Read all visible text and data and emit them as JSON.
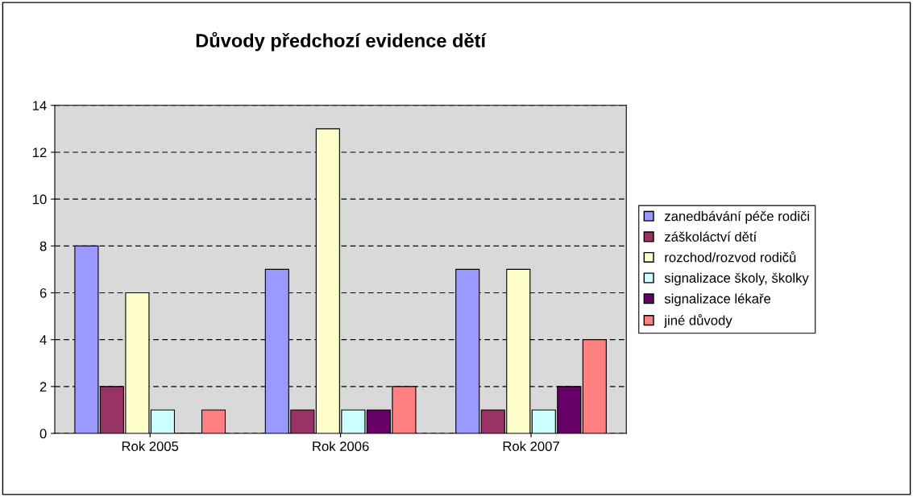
{
  "chart_data": {
    "type": "bar",
    "title": "Důvody předchozí evidence dětí",
    "categories": [
      "Rok 2005",
      "Rok 2006",
      "Rok 2007"
    ],
    "series": [
      {
        "name": "zanedbávání péče rodiči",
        "color": "#9999ff",
        "values": [
          8,
          7,
          7
        ]
      },
      {
        "name": "záškoláctví dětí",
        "color": "#993366",
        "values": [
          2,
          1,
          1
        ]
      },
      {
        "name": "rozchod/rozvod rodičů",
        "color": "#ffffcc",
        "values": [
          6,
          13,
          7
        ]
      },
      {
        "name": "signalizace školy, školky",
        "color": "#ccffff",
        "values": [
          1,
          1,
          1
        ]
      },
      {
        "name": "signalizace lékaře",
        "color": "#660066",
        "values": [
          0,
          1,
          2
        ]
      },
      {
        "name": "jiné důvody",
        "color": "#ff8080",
        "values": [
          1,
          2,
          4
        ]
      }
    ],
    "ylim": [
      0,
      14
    ],
    "yticks": [
      0,
      2,
      4,
      6,
      8,
      10,
      12,
      14
    ],
    "grid": "y",
    "legend": "right"
  }
}
